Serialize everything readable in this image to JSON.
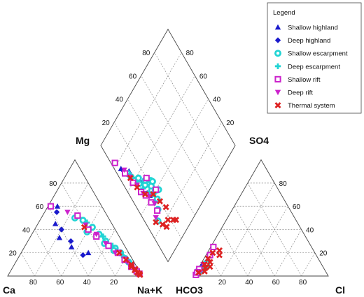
{
  "chart_data": {
    "type": "scatter",
    "subtype": "piper-diagram",
    "title": "",
    "colors": {
      "shallow_highland": "#1a1acc",
      "deep_highland": "#1a1acc",
      "shallow_escarpment": "#22d4d4",
      "deep_escarpment": "#22d4d4",
      "shallow_rift": "#cc22cc",
      "deep_rift": "#cc22cc",
      "thermal_system": "#dd2222"
    },
    "legend": {
      "title": "Legend",
      "position": "top-right",
      "items": [
        {
          "label": "Shallow highland",
          "marker": "triangle-up",
          "color": "#1a1acc"
        },
        {
          "label": "Deep highland",
          "marker": "diamond",
          "color": "#1a1acc"
        },
        {
          "label": "Shallow escarpment",
          "marker": "circle-ring",
          "color": "#22d4d4"
        },
        {
          "label": "Deep escarpment",
          "marker": "plus",
          "color": "#22d4d4"
        },
        {
          "label": "Shallow rift",
          "marker": "square-open",
          "color": "#cc22cc"
        },
        {
          "label": "Deep rift",
          "marker": "triangle-down",
          "color": "#cc22cc"
        },
        {
          "label": "Thermal system",
          "marker": "x",
          "color": "#dd2222"
        }
      ]
    },
    "axis_labels": {
      "cation_left": "Mg",
      "cation_bottom_left": "Ca",
      "cation_bottom_right": "Na+K",
      "anion_bottom_left": "HCO3",
      "anion_right": "SO4",
      "anion_bottom_right": "Cl"
    },
    "ticks": {
      "cation_mg": [
        "20",
        "40",
        "60",
        "80"
      ],
      "cation_ca": [
        "80",
        "60",
        "40",
        "20"
      ],
      "anion_cl": [
        "20",
        "40",
        "60",
        "80"
      ],
      "anion_so4": [
        "20",
        "40",
        "60",
        "80"
      ],
      "diamond_left": [
        "20",
        "40",
        "60",
        "80"
      ],
      "diamond_right": [
        "80",
        "60",
        "40",
        "20"
      ]
    },
    "cation_series": [
      {
        "name": "Shallow highland",
        "points": [
          [
            60,
            33
          ],
          [
            45,
            42
          ],
          [
            33,
            45
          ],
          [
            25,
            40
          ],
          [
            20,
            30
          ]
        ]
      },
      {
        "name": "Deep highland",
        "points": [
          [
            55,
            36
          ],
          [
            40,
            40
          ],
          [
            30,
            38
          ],
          [
            18,
            35
          ]
        ]
      },
      {
        "name": "Shallow escarpment",
        "points": [
          [
            48,
            20
          ],
          [
            42,
            16
          ],
          [
            36,
            14
          ],
          [
            30,
            12
          ],
          [
            24,
            8
          ],
          [
            20,
            6
          ],
          [
            15,
            5
          ],
          [
            12,
            4
          ],
          [
            50,
            25
          ],
          [
            38,
            22
          ],
          [
            28,
            14
          ],
          [
            22,
            10
          ]
        ]
      },
      {
        "name": "Deep escarpment",
        "points": [
          [
            46,
            18
          ],
          [
            34,
            12
          ],
          [
            26,
            9
          ],
          [
            18,
            6
          ],
          [
            10,
            3
          ]
        ]
      },
      {
        "name": "Shallow rift",
        "points": [
          [
            60,
            38
          ],
          [
            52,
            22
          ],
          [
            40,
            20
          ],
          [
            34,
            17
          ],
          [
            26,
            12
          ],
          [
            20,
            8
          ],
          [
            14,
            6
          ],
          [
            8,
            4
          ],
          [
            4,
            2
          ],
          [
            2,
            1
          ]
        ]
      },
      {
        "name": "Deep rift",
        "points": [
          [
            55,
            28
          ],
          [
            44,
            20
          ],
          [
            36,
            16
          ],
          [
            28,
            13
          ],
          [
            20,
            10
          ],
          [
            12,
            5
          ],
          [
            6,
            3
          ]
        ]
      },
      {
        "name": "Thermal system",
        "points": [
          [
            42,
            22
          ],
          [
            20,
            7
          ],
          [
            14,
            5
          ],
          [
            8,
            4
          ],
          [
            5,
            3
          ],
          [
            3,
            2
          ],
          [
            2,
            1
          ],
          [
            1,
            1
          ],
          [
            6,
            2
          ],
          [
            10,
            3
          ]
        ]
      }
    ],
    "anion_series": [
      {
        "name": "Shallow highland",
        "points": [
          [
            8,
            2
          ],
          [
            10,
            3
          ]
        ]
      },
      {
        "name": "Deep highland",
        "points": [
          [
            9,
            2
          ],
          [
            12,
            3
          ]
        ]
      },
      {
        "name": "Shallow escarpment",
        "points": [
          [
            3,
            2
          ],
          [
            5,
            3
          ],
          [
            7,
            4
          ],
          [
            9,
            5
          ],
          [
            11,
            4
          ],
          [
            4,
            1
          ],
          [
            6,
            2
          ]
        ]
      },
      {
        "name": "Deep escarpment",
        "points": [
          [
            2,
            1
          ],
          [
            5,
            2
          ],
          [
            8,
            3
          ]
        ]
      },
      {
        "name": "Shallow rift",
        "points": [
          [
            1,
            1
          ],
          [
            3,
            1
          ],
          [
            25,
            2
          ],
          [
            18,
            3
          ],
          [
            6,
            1
          ]
        ]
      },
      {
        "name": "Deep rift",
        "points": [
          [
            4,
            1
          ],
          [
            10,
            2
          ]
        ]
      },
      {
        "name": "Thermal system",
        "points": [
          [
            4,
            6
          ],
          [
            8,
            8
          ],
          [
            12,
            6
          ],
          [
            18,
            10
          ],
          [
            15,
            3
          ],
          [
            20,
            4
          ],
          [
            10,
            3
          ],
          [
            7,
            5
          ],
          [
            3,
            2
          ],
          [
            22,
            8
          ]
        ]
      }
    ],
    "diamond_series": [
      {
        "name": "Shallow highland",
        "points": [
          [
            75,
            5
          ],
          [
            68,
            10
          ],
          [
            55,
            14
          ],
          [
            42,
            15
          ]
        ]
      },
      {
        "name": "Deep highland",
        "points": [
          [
            72,
            6
          ],
          [
            62,
            10
          ],
          [
            45,
            14
          ]
        ]
      },
      {
        "name": "Shallow escarpment",
        "points": [
          [
            68,
            8
          ],
          [
            60,
            10
          ],
          [
            55,
            12
          ],
          [
            50,
            16
          ],
          [
            45,
            20
          ],
          [
            40,
            21
          ],
          [
            35,
            19
          ],
          [
            30,
            15
          ],
          [
            25,
            10
          ],
          [
            64,
            9
          ],
          [
            58,
            14
          ],
          [
            52,
            18
          ],
          [
            48,
            22
          ],
          [
            38,
            24
          ],
          [
            46,
            23
          ]
        ]
      },
      {
        "name": "Deep escarpment",
        "points": [
          [
            66,
            8
          ],
          [
            58,
            10
          ],
          [
            50,
            13
          ],
          [
            44,
            16
          ],
          [
            40,
            18
          ],
          [
            35,
            16
          ]
        ]
      },
      {
        "name": "Shallow rift",
        "points": [
          [
            82,
            3
          ],
          [
            70,
            6
          ],
          [
            60,
            8
          ],
          [
            50,
            10
          ],
          [
            45,
            12
          ],
          [
            38,
            13
          ],
          [
            30,
            14
          ],
          [
            40,
            22
          ],
          [
            52,
            20
          ]
        ]
      },
      {
        "name": "Deep rift",
        "points": [
          [
            72,
            7
          ],
          [
            65,
            8
          ],
          [
            56,
            10
          ],
          [
            48,
            11
          ],
          [
            42,
            14
          ],
          [
            35,
            15
          ],
          [
            28,
            10
          ]
        ]
      },
      {
        "name": "Thermal system",
        "points": [
          [
            64,
            8
          ],
          [
            55,
            9
          ],
          [
            46,
            12
          ],
          [
            40,
            18
          ],
          [
            32,
            20
          ],
          [
            25,
            22
          ],
          [
            18,
            18
          ],
          [
            14,
            22
          ],
          [
            12,
            24
          ],
          [
            16,
            14
          ],
          [
            20,
            12
          ],
          [
            26,
            8
          ]
        ]
      }
    ]
  }
}
